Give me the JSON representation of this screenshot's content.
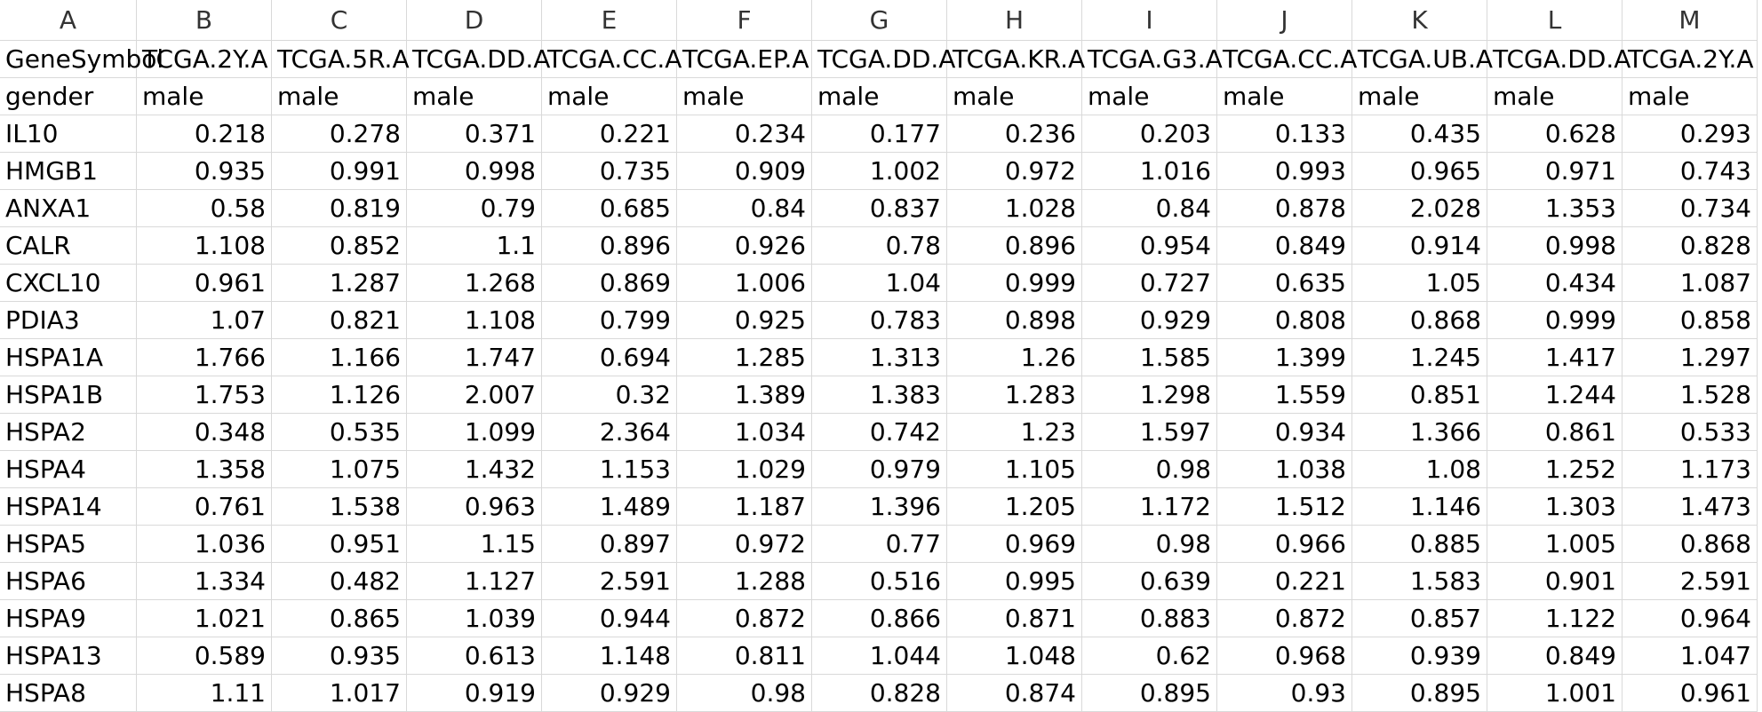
{
  "sheet": {
    "columns": [
      "A",
      "B",
      "C",
      "D",
      "E",
      "F",
      "G",
      "H",
      "I",
      "J",
      "K",
      "L",
      "M"
    ],
    "rows": [
      [
        "GeneSymbol",
        "TCGA.2Y.A",
        "TCGA.5R.A",
        "TCGA.DD.A",
        "TCGA.CC.A",
        "TCGA.EP.A",
        "TCGA.DD.A",
        "TCGA.KR.A",
        "TCGA.G3.A",
        "TCGA.CC.A",
        "TCGA.UB.A",
        "TCGA.DD.A",
        "TCGA.2Y.A"
      ],
      [
        "gender",
        "male",
        "male",
        "male",
        "male",
        "male",
        "male",
        "male",
        "male",
        "male",
        "male",
        "male",
        "male"
      ],
      [
        "IL10",
        "0.218",
        "0.278",
        "0.371",
        "0.221",
        "0.234",
        "0.177",
        "0.236",
        "0.203",
        "0.133",
        "0.435",
        "0.628",
        "0.293"
      ],
      [
        "HMGB1",
        "0.935",
        "0.991",
        "0.998",
        "0.735",
        "0.909",
        "1.002",
        "0.972",
        "1.016",
        "0.993",
        "0.965",
        "0.971",
        "0.743"
      ],
      [
        "ANXA1",
        "0.58",
        "0.819",
        "0.79",
        "0.685",
        "0.84",
        "0.837",
        "1.028",
        "0.84",
        "0.878",
        "2.028",
        "1.353",
        "0.734"
      ],
      [
        "CALR",
        "1.108",
        "0.852",
        "1.1",
        "0.896",
        "0.926",
        "0.78",
        "0.896",
        "0.954",
        "0.849",
        "0.914",
        "0.998",
        "0.828"
      ],
      [
        "CXCL10",
        "0.961",
        "1.287",
        "1.268",
        "0.869",
        "1.006",
        "1.04",
        "0.999",
        "0.727",
        "0.635",
        "1.05",
        "0.434",
        "1.087"
      ],
      [
        "PDIA3",
        "1.07",
        "0.821",
        "1.108",
        "0.799",
        "0.925",
        "0.783",
        "0.898",
        "0.929",
        "0.808",
        "0.868",
        "0.999",
        "0.858"
      ],
      [
        "HSPA1A",
        "1.766",
        "1.166",
        "1.747",
        "0.694",
        "1.285",
        "1.313",
        "1.26",
        "1.585",
        "1.399",
        "1.245",
        "1.417",
        "1.297"
      ],
      [
        "HSPA1B",
        "1.753",
        "1.126",
        "2.007",
        "0.32",
        "1.389",
        "1.383",
        "1.283",
        "1.298",
        "1.559",
        "0.851",
        "1.244",
        "1.528"
      ],
      [
        "HSPA2",
        "0.348",
        "0.535",
        "1.099",
        "2.364",
        "1.034",
        "0.742",
        "1.23",
        "1.597",
        "0.934",
        "1.366",
        "0.861",
        "0.533"
      ],
      [
        "HSPA4",
        "1.358",
        "1.075",
        "1.432",
        "1.153",
        "1.029",
        "0.979",
        "1.105",
        "0.98",
        "1.038",
        "1.08",
        "1.252",
        "1.173"
      ],
      [
        "HSPA14",
        "0.761",
        "1.538",
        "0.963",
        "1.489",
        "1.187",
        "1.396",
        "1.205",
        "1.172",
        "1.512",
        "1.146",
        "1.303",
        "1.473"
      ],
      [
        "HSPA5",
        "1.036",
        "0.951",
        "1.15",
        "0.897",
        "0.972",
        "0.77",
        "0.969",
        "0.98",
        "0.966",
        "0.885",
        "1.005",
        "0.868"
      ],
      [
        "HSPA6",
        "1.334",
        "0.482",
        "1.127",
        "2.591",
        "1.288",
        "0.516",
        "0.995",
        "0.639",
        "0.221",
        "1.583",
        "0.901",
        "2.591"
      ],
      [
        "HSPA9",
        "1.021",
        "0.865",
        "1.039",
        "0.944",
        "0.872",
        "0.866",
        "0.871",
        "0.883",
        "0.872",
        "0.857",
        "1.122",
        "0.964"
      ],
      [
        "HSPA13",
        "0.589",
        "0.935",
        "0.613",
        "1.148",
        "0.811",
        "1.044",
        "1.048",
        "0.62",
        "0.968",
        "0.939",
        "0.849",
        "1.047"
      ],
      [
        "HSPA8",
        "1.11",
        "1.017",
        "0.919",
        "0.929",
        "0.98",
        "0.828",
        "0.874",
        "0.895",
        "0.93",
        "0.895",
        "1.001",
        "0.961"
      ]
    ]
  }
}
